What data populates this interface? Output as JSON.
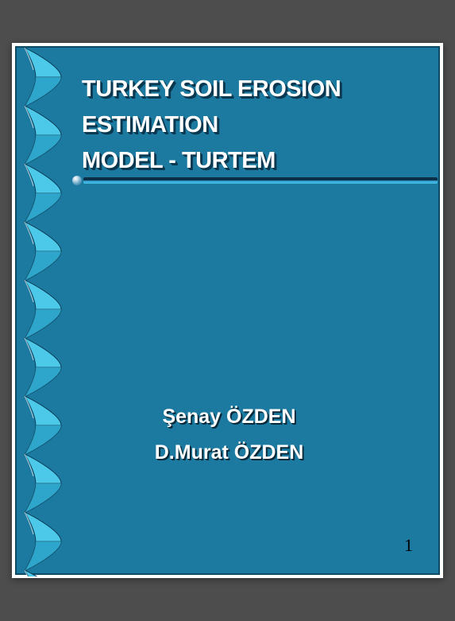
{
  "slide": {
    "background_color": "#1c7aa0",
    "border_color": "#0d4a66",
    "ribbon": {
      "light": "#4cc8e8",
      "dark": "#0a7aa8",
      "edge": "#063a54",
      "twist_count": 10
    },
    "title": {
      "line1": "TURKEY SOIL EROSION ESTIMATION",
      "line2": "MODEL  - TURTEM",
      "color": "#ffffff",
      "shadow_color": "#0a3850",
      "fontsize": 29,
      "weight": 900
    },
    "rule": {
      "dot_gradient": [
        "#ffffff",
        "#d8e8f0",
        "#6aa8c8",
        "#2a6a8a"
      ],
      "bar_top": "#072c40",
      "bar_bottom": "#46c4e8"
    },
    "authors": {
      "line1": "Şenay ÖZDEN",
      "line2": "D.Murat ÖZDEN",
      "color": "#ffffff",
      "shadow_color": "#082a3a",
      "fontsize": 25
    },
    "page_number": "1"
  },
  "page_background": "#4d4d4d"
}
